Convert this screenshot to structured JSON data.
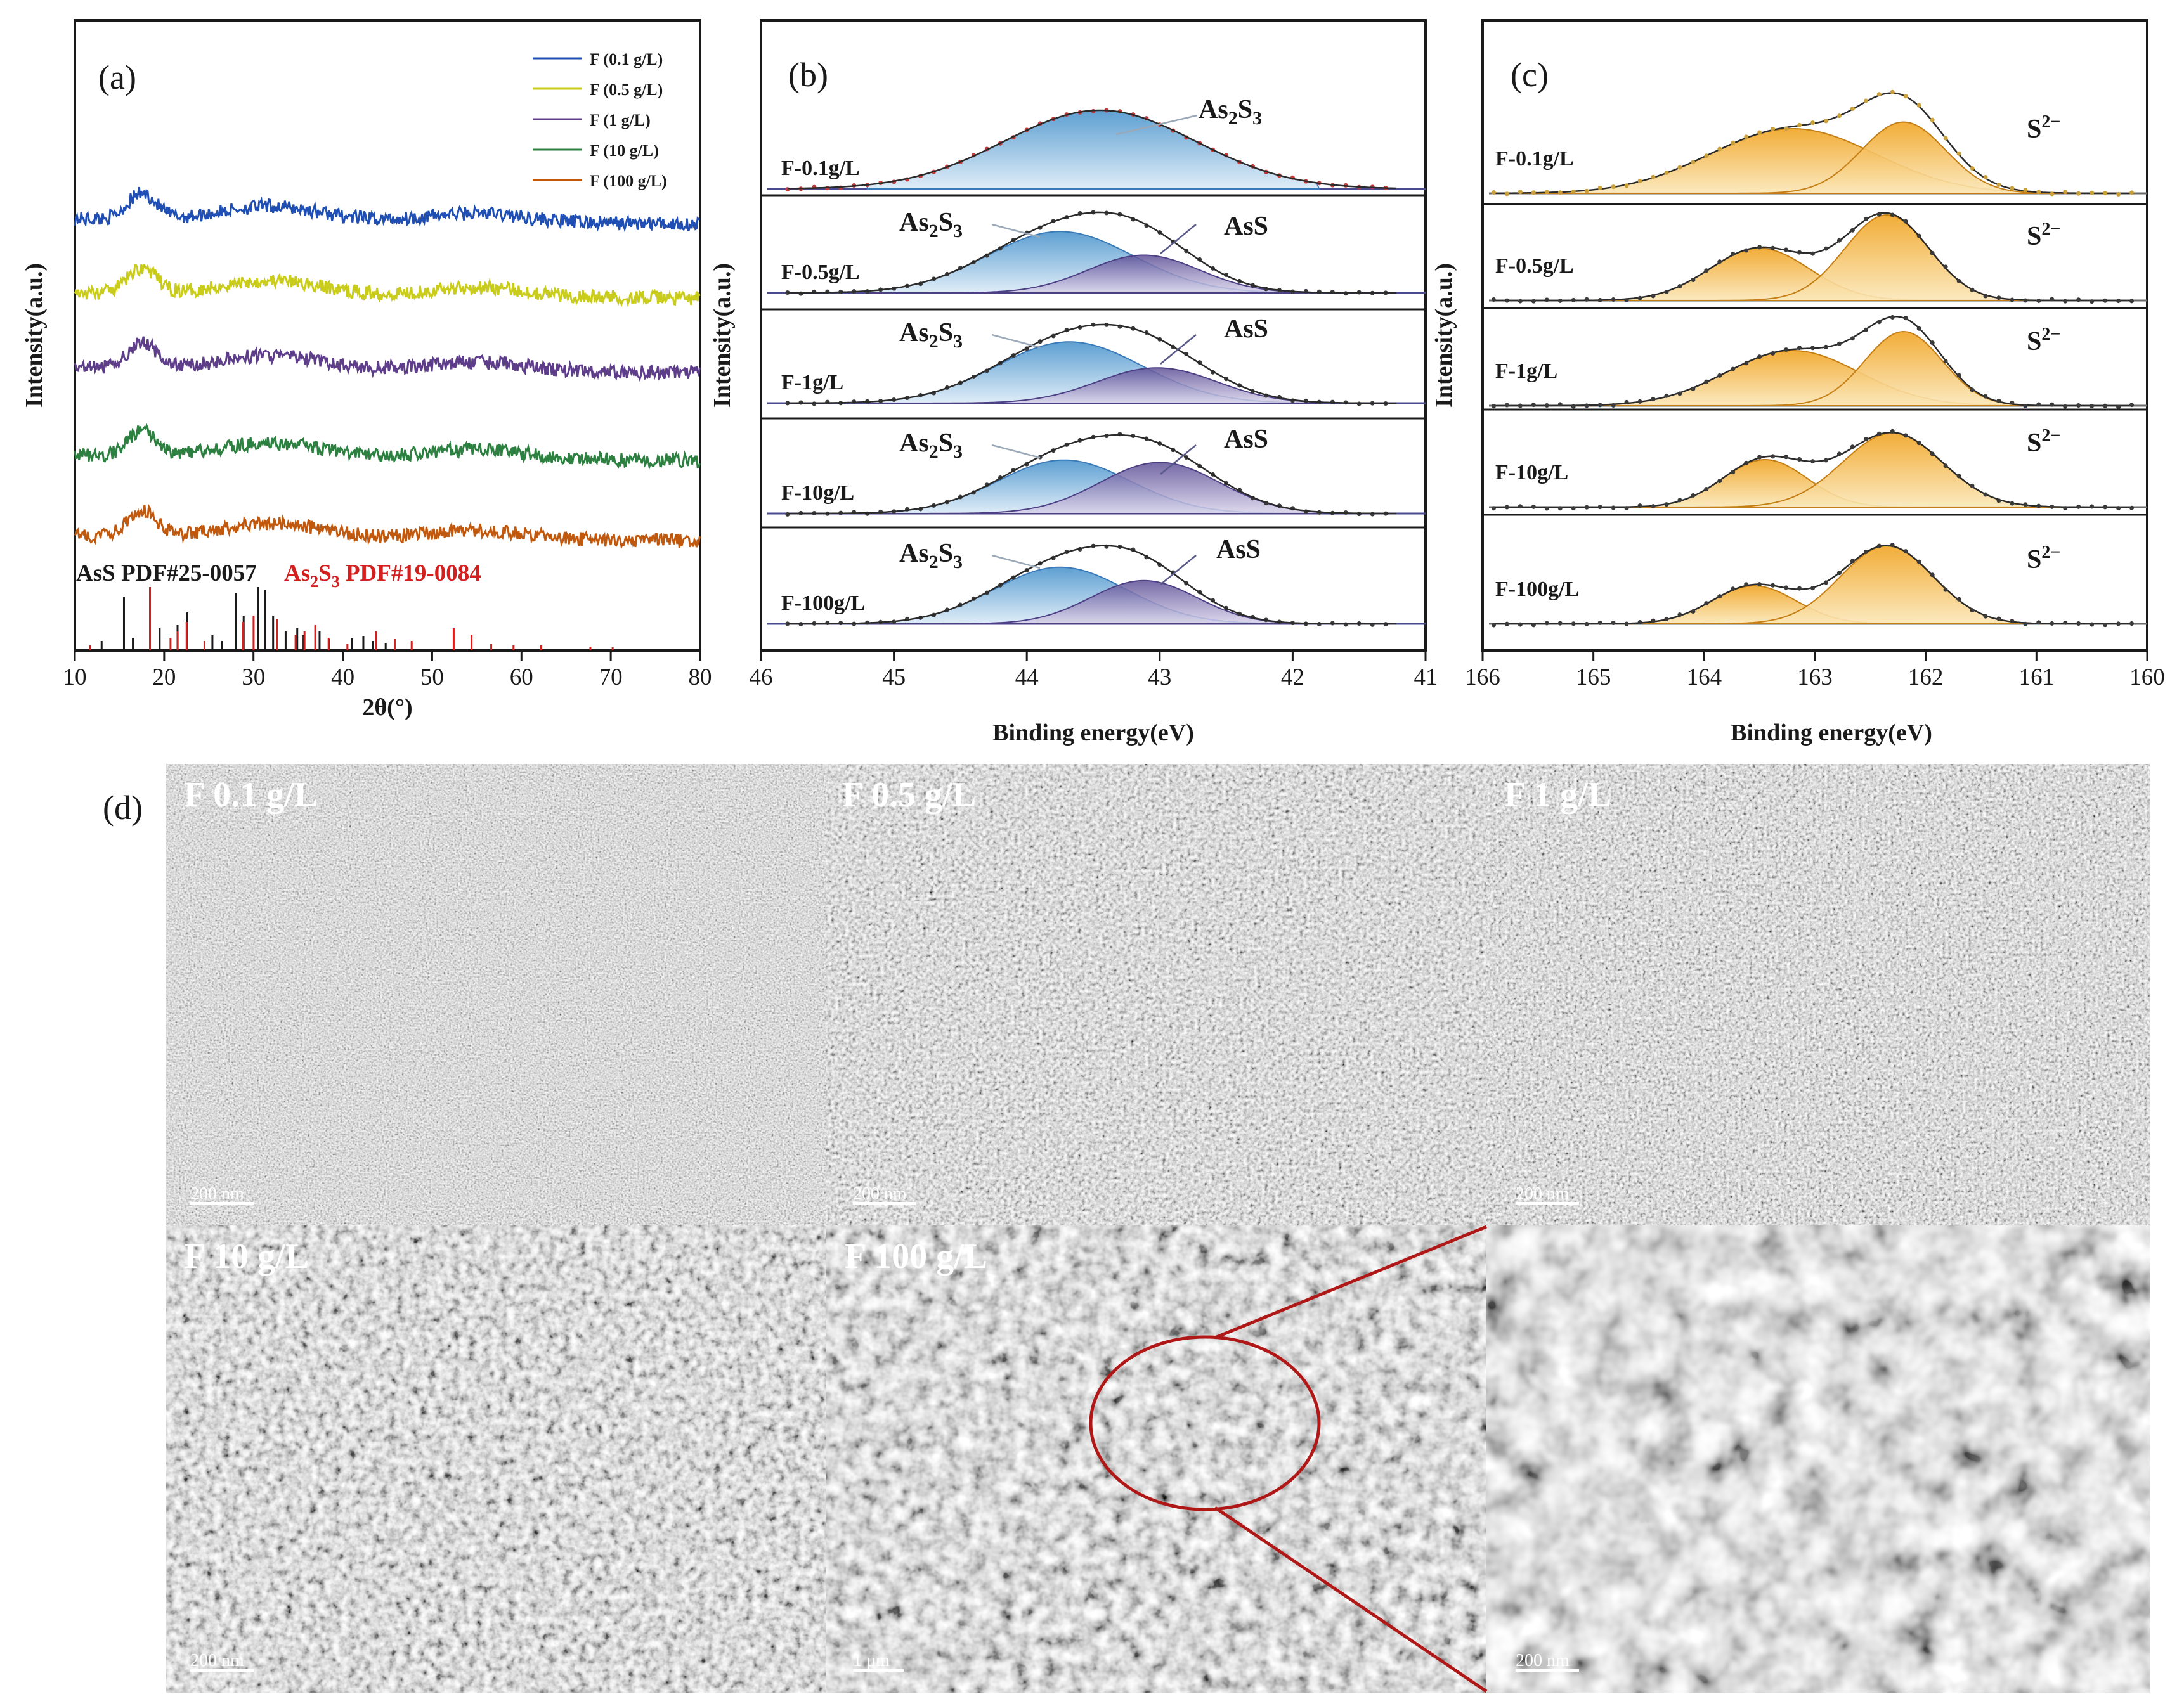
{
  "figure": {
    "panel_a_label": "(a)",
    "panel_b_label": "(b)",
    "panel_c_label": "(c)",
    "panel_d_label": "(d)"
  },
  "colors": {
    "xrd": [
      "#1f4fb4",
      "#c9cc1a",
      "#5e3e8a",
      "#2c8040",
      "#c0580e"
    ],
    "as2s3_fill": "#7bb7e0",
    "ass_fill": "#7468a8",
    "s2_fill": "#f5b338",
    "ref_ass": "#1a1a1a",
    "ref_as2s3": "#d41f1f",
    "zoom": "#b01717"
  },
  "chart_data": [
    {
      "type": "line",
      "panel": "(a)",
      "title": "",
      "xlabel": "2θ(°)",
      "ylabel": "Intensity(a.u.)",
      "xlim": [
        10,
        80
      ],
      "xticks": [
        10,
        20,
        30,
        40,
        50,
        60,
        70,
        80
      ],
      "legend": [
        "F (0.1 g/L)",
        "F (0.5 g/L)",
        "F (1 g/L)",
        "F (10 g/L)",
        "F (100 g/L)"
      ],
      "legend_position": "top-right",
      "series": [
        {
          "name": "F (0.1 g/L)",
          "offset": 4
        },
        {
          "name": "F (0.5 g/L)",
          "offset": 3
        },
        {
          "name": "F (1 g/L)",
          "offset": 2
        },
        {
          "name": "F (10 g/L)",
          "offset": 1
        },
        {
          "name": "F (100 g/L)",
          "offset": 0
        }
      ],
      "amorphous_humps": [
        {
          "center_2theta": 17.5,
          "relative_height": 1.0
        },
        {
          "center_2theta": 32,
          "relative_height": 0.55
        },
        {
          "center_2theta": 55,
          "relative_height": 0.35
        }
      ],
      "references": [
        {
          "name": "AsS PDF#25-0057",
          "color": "#1a1a1a",
          "peaks": [
            [
              13.0,
              0.15
            ],
            [
              15.5,
              0.85
            ],
            [
              16.5,
              0.2
            ],
            [
              19.5,
              0.35
            ],
            [
              21.5,
              0.4
            ],
            [
              22.6,
              0.6
            ],
            [
              25.4,
              0.25
            ],
            [
              26.5,
              0.15
            ],
            [
              28.0,
              0.9
            ],
            [
              28.9,
              0.55
            ],
            [
              30.5,
              1.0
            ],
            [
              31.3,
              0.95
            ],
            [
              32.2,
              0.55
            ],
            [
              33.6,
              0.3
            ],
            [
              34.9,
              0.35
            ],
            [
              35.6,
              0.25
            ],
            [
              37.4,
              0.3
            ],
            [
              38.5,
              0.18
            ],
            [
              41.0,
              0.2
            ],
            [
              42.3,
              0.22
            ],
            [
              43.4,
              0.15
            ],
            [
              44.8,
              0.12
            ]
          ]
        },
        {
          "name": "As2S3 PDF#19-0084",
          "color": "#d41f1f",
          "peaks": [
            [
              11.5,
              0.08
            ],
            [
              18.2,
              1.0
            ],
            [
              20.5,
              0.2
            ],
            [
              21.3,
              0.3
            ],
            [
              22.3,
              0.45
            ],
            [
              24.3,
              0.15
            ],
            [
              28.6,
              0.45
            ],
            [
              29.8,
              0.55
            ],
            [
              32.4,
              0.5
            ],
            [
              34.5,
              0.25
            ],
            [
              35.5,
              0.3
            ],
            [
              36.7,
              0.4
            ],
            [
              38.2,
              0.2
            ],
            [
              40.3,
              0.1
            ],
            [
              43.5,
              0.3
            ],
            [
              45.6,
              0.18
            ],
            [
              47.5,
              0.15
            ],
            [
              52.2,
              0.35
            ],
            [
              54.2,
              0.25
            ],
            [
              56.4,
              0.1
            ],
            [
              58.9,
              0.08
            ],
            [
              62.0,
              0.08
            ],
            [
              67.5,
              0.06
            ],
            [
              70.0,
              0.05
            ]
          ]
        }
      ],
      "ref_label_ass": "AsS PDF#25-0057",
      "ref_label_as2s3_prefix": "As",
      "ref_label_as2s3_sub1": "2",
      "ref_label_as2s3_mid": "S",
      "ref_label_as2s3_sub2": "3",
      "ref_label_as2s3_suffix": " PDF#19-0084"
    },
    {
      "type": "line",
      "panel": "(b)",
      "xlabel": "Binding energy(eV)",
      "ylabel": "Intensity(a.u.)",
      "xlim": [
        46,
        41
      ],
      "xticks": [
        46,
        45,
        44,
        43,
        42,
        41
      ],
      "series": [
        {
          "name": "F-0.1g/L",
          "peaks": [
            {
              "label": "As2S3",
              "center": 43.45,
              "sigma": 0.72,
              "amp": 1.0
            }
          ]
        },
        {
          "name": "F-0.5g/L",
          "peaks": [
            {
              "label": "As2S3",
              "center": 43.75,
              "sigma": 0.55,
              "amp": 0.78
            },
            {
              "label": "AsS",
              "center": 43.12,
              "sigma": 0.42,
              "amp": 0.48
            }
          ]
        },
        {
          "name": "F-1g/L",
          "peaks": [
            {
              "label": "As2S3",
              "center": 43.68,
              "sigma": 0.55,
              "amp": 0.78
            },
            {
              "label": "AsS",
              "center": 43.02,
              "sigma": 0.45,
              "amp": 0.45
            }
          ]
        },
        {
          "name": "F-10g/L",
          "peaks": [
            {
              "label": "As2S3",
              "center": 43.72,
              "sigma": 0.5,
              "amp": 0.68
            },
            {
              "label": "AsS",
              "center": 43.0,
              "sigma": 0.45,
              "amp": 0.65
            }
          ]
        },
        {
          "name": "F-100g/L",
          "peaks": [
            {
              "label": "As2S3",
              "center": 43.75,
              "sigma": 0.5,
              "amp": 0.72
            },
            {
              "label": "AsS",
              "center": 43.12,
              "sigma": 0.4,
              "amp": 0.55
            }
          ]
        }
      ],
      "labels": {
        "as2s3_main": "As",
        "as2s3_sub1": "2",
        "as2s3_mid": "S",
        "as2s3_sub2": "3",
        "ass": "AsS"
      }
    },
    {
      "type": "line",
      "panel": "(c)",
      "xlabel": "Binding energy(eV)",
      "ylabel": "Intensity(a.u.)",
      "xlim": [
        166,
        160
      ],
      "xticks": [
        166,
        165,
        164,
        163,
        162,
        161,
        160
      ],
      "series": [
        {
          "name": "F-0.1g/L",
          "peaks": [
            {
              "center": 163.2,
              "sigma": 0.75,
              "amp": 0.68
            },
            {
              "center": 162.2,
              "sigma": 0.38,
              "amp": 0.75
            }
          ]
        },
        {
          "name": "F-0.5g/L",
          "peaks": [
            {
              "center": 163.5,
              "sigma": 0.45,
              "amp": 0.55
            },
            {
              "center": 162.35,
              "sigma": 0.38,
              "amp": 0.9
            }
          ]
        },
        {
          "name": "F-1g/L",
          "peaks": [
            {
              "center": 163.2,
              "sigma": 0.6,
              "amp": 0.58
            },
            {
              "center": 162.2,
              "sigma": 0.35,
              "amp": 0.78
            }
          ]
        },
        {
          "name": "F-10g/L",
          "peaks": [
            {
              "center": 163.45,
              "sigma": 0.38,
              "amp": 0.5
            },
            {
              "center": 162.3,
              "sigma": 0.45,
              "amp": 0.78
            }
          ]
        },
        {
          "name": "F-100g/L",
          "peaks": [
            {
              "center": 163.55,
              "sigma": 0.38,
              "amp": 0.4
            },
            {
              "center": 162.35,
              "sigma": 0.42,
              "amp": 0.82
            }
          ]
        }
      ],
      "peak_label_main": "S",
      "peak_label_sup": "2−"
    }
  ],
  "sem": {
    "panels": [
      {
        "title": "F 0.1 g/L",
        "scale": "200 nm"
      },
      {
        "title": "F 0.5 g/L",
        "scale": "200 nm"
      },
      {
        "title": "F 1 g/L",
        "scale": "200 nm"
      },
      {
        "title": "F 10 g/L",
        "scale": "200 nm"
      },
      {
        "title": "F 100 g/L",
        "scale": "1 μm"
      },
      {
        "title": "",
        "scale": "200 nm"
      }
    ]
  }
}
